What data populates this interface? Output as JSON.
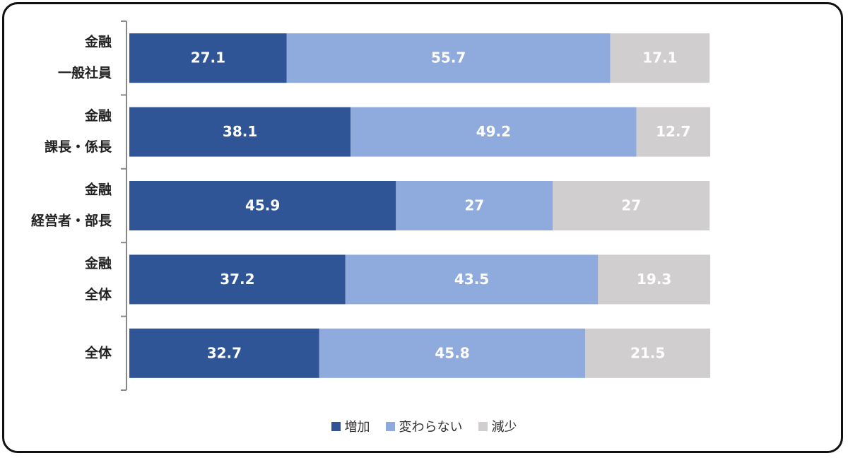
{
  "chart_data": {
    "type": "bar",
    "orientation": "horizontal",
    "stacked": true,
    "categories": [
      [
        "金融",
        "一般社員"
      ],
      [
        "金融",
        "課長・係長"
      ],
      [
        "金融",
        "経営者・部長"
      ],
      [
        "金融",
        "全体"
      ],
      [
        "全体"
      ]
    ],
    "series": [
      {
        "name": "増加",
        "color": "#2f5597",
        "values": [
          27.1,
          38.1,
          45.9,
          37.2,
          32.7
        ]
      },
      {
        "name": "変わらない",
        "color": "#8faadc",
        "values": [
          55.7,
          49.2,
          27,
          43.5,
          45.8
        ]
      },
      {
        "name": "減少",
        "color": "#d0cece",
        "values": [
          17.1,
          12.7,
          27,
          19.3,
          21.5
        ]
      }
    ],
    "xlim": [
      0,
      100
    ],
    "grid": false,
    "legend_position": "bottom"
  }
}
